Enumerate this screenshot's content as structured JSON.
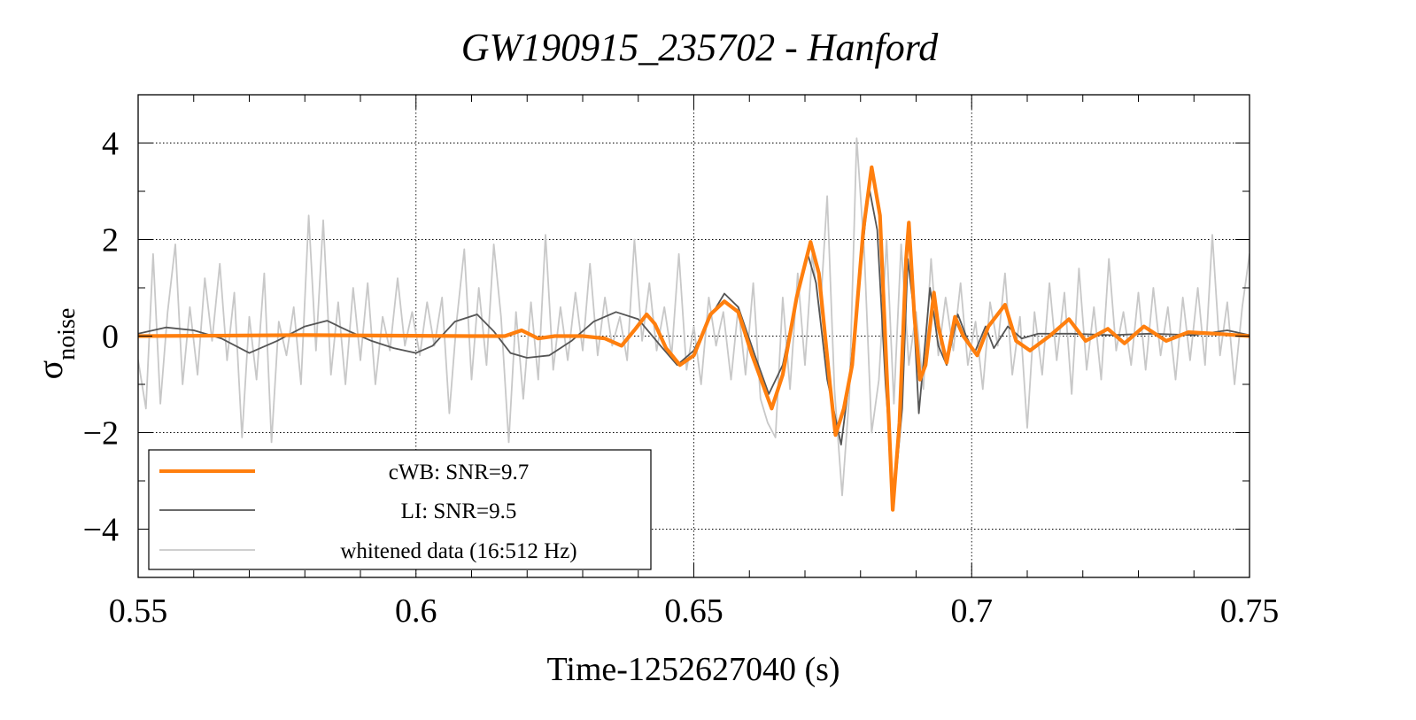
{
  "chart_data": {
    "type": "line",
    "title": "GW190915_235702 - Hanford",
    "xlabel": "Time-1252627040 (s)",
    "ylabel_main": "σ",
    "ylabel_sub": "noise",
    "xlim": [
      0.55,
      0.75
    ],
    "ylim": [
      -5,
      5
    ],
    "xticks": [
      0.55,
      0.6,
      0.65,
      0.7,
      0.75
    ],
    "xtick_labels": [
      "0.55",
      "0.6",
      "0.65",
      "0.7",
      "0.75"
    ],
    "yticks": [
      -4,
      -2,
      0,
      2,
      4
    ],
    "ytick_labels": [
      "−4",
      "−2",
      "0",
      "2",
      "4"
    ],
    "grid": true,
    "legend_position": "bottom-left",
    "series": [
      {
        "name": "whitened data (16:512 Hz)",
        "color": "#c8c8c8",
        "points": [
          [
            0.55,
            -0.5
          ],
          [
            0.5514,
            -1.5
          ],
          [
            0.5527,
            1.7
          ],
          [
            0.554,
            -1.4
          ],
          [
            0.5553,
            0.5
          ],
          [
            0.5567,
            1.9
          ],
          [
            0.558,
            -1.0
          ],
          [
            0.5593,
            0.6
          ],
          [
            0.5607,
            -0.8
          ],
          [
            0.562,
            1.2
          ],
          [
            0.5633,
            -0.1
          ],
          [
            0.5647,
            1.5
          ],
          [
            0.566,
            -0.5
          ],
          [
            0.5673,
            0.9
          ],
          [
            0.5687,
            -2.1
          ],
          [
            0.57,
            0.4
          ],
          [
            0.5713,
            -0.9
          ],
          [
            0.5727,
            1.3
          ],
          [
            0.574,
            -2.2
          ],
          [
            0.5753,
            0.3
          ],
          [
            0.5767,
            -0.4
          ],
          [
            0.578,
            0.6
          ],
          [
            0.5793,
            -1.0
          ],
          [
            0.5807,
            2.5
          ],
          [
            0.582,
            -0.3
          ],
          [
            0.5833,
            2.4
          ],
          [
            0.5847,
            -0.8
          ],
          [
            0.586,
            0.7
          ],
          [
            0.5873,
            -1.0
          ],
          [
            0.5887,
            1.0
          ],
          [
            0.59,
            -0.5
          ],
          [
            0.5913,
            1.1
          ],
          [
            0.5927,
            -1.0
          ],
          [
            0.594,
            0.4
          ],
          [
            0.5953,
            -0.3
          ],
          [
            0.5967,
            1.2
          ],
          [
            0.598,
            -0.2
          ],
          [
            0.5993,
            0.5
          ],
          [
            0.6007,
            -0.4
          ],
          [
            0.602,
            0.7
          ],
          [
            0.6033,
            -0.2
          ],
          [
            0.6047,
            0.8
          ],
          [
            0.606,
            -1.6
          ],
          [
            0.6073,
            0.3
          ],
          [
            0.6087,
            1.8
          ],
          [
            0.61,
            -0.9
          ],
          [
            0.6113,
            1.0
          ],
          [
            0.6127,
            -0.6
          ],
          [
            0.614,
            1.9
          ],
          [
            0.6153,
            0.4
          ],
          [
            0.6167,
            -2.2
          ],
          [
            0.618,
            0.5
          ],
          [
            0.6193,
            -1.3
          ],
          [
            0.6207,
            0.7
          ],
          [
            0.622,
            -0.9
          ],
          [
            0.6233,
            2.1
          ],
          [
            0.6247,
            -0.7
          ],
          [
            0.626,
            0.6
          ],
          [
            0.6273,
            -0.5
          ],
          [
            0.6287,
            0.9
          ],
          [
            0.63,
            -0.3
          ],
          [
            0.6313,
            1.5
          ],
          [
            0.6327,
            -0.4
          ],
          [
            0.634,
            0.8
          ],
          [
            0.6353,
            -0.2
          ],
          [
            0.6367,
            0.4
          ],
          [
            0.638,
            -0.5
          ],
          [
            0.6393,
            2.0
          ],
          [
            0.6407,
            -0.1
          ],
          [
            0.642,
            1.1
          ],
          [
            0.6433,
            -0.3
          ],
          [
            0.6447,
            0.6
          ],
          [
            0.646,
            -0.4
          ],
          [
            0.6473,
            1.7
          ],
          [
            0.6487,
            -0.7
          ],
          [
            0.65,
            0.2
          ],
          [
            0.6513,
            -1.0
          ],
          [
            0.6527,
            0.8
          ],
          [
            0.654,
            -0.2
          ],
          [
            0.6553,
            0.5
          ],
          [
            0.6567,
            -0.9
          ],
          [
            0.658,
            0.6
          ],
          [
            0.6593,
            -0.8
          ],
          [
            0.6607,
            1.1
          ],
          [
            0.662,
            -1.3
          ],
          [
            0.6633,
            -1.8
          ],
          [
            0.6647,
            -2.1
          ],
          [
            0.666,
            0.8
          ],
          [
            0.6673,
            -1.1
          ],
          [
            0.6687,
            1.3
          ],
          [
            0.67,
            -0.6
          ],
          [
            0.6713,
            1.7
          ],
          [
            0.6727,
            0.4
          ],
          [
            0.674,
            2.9
          ],
          [
            0.6753,
            -1.1
          ],
          [
            0.6767,
            -3.3
          ],
          [
            0.678,
            -1.2
          ],
          [
            0.6793,
            4.1
          ],
          [
            0.6807,
            1.7
          ],
          [
            0.682,
            -2.0
          ],
          [
            0.6833,
            -0.9
          ],
          [
            0.6847,
            2.0
          ],
          [
            0.686,
            -1.4
          ],
          [
            0.6873,
            1.9
          ],
          [
            0.6887,
            -0.6
          ],
          [
            0.69,
            0.5
          ],
          [
            0.6913,
            -1.1
          ],
          [
            0.6927,
            1.6
          ],
          [
            0.694,
            -0.4
          ],
          [
            0.6953,
            0.8
          ],
          [
            0.6967,
            -0.3
          ],
          [
            0.698,
            1.1
          ],
          [
            0.6993,
            -0.6
          ],
          [
            0.7007,
            0.3
          ],
          [
            0.702,
            -1.1
          ],
          [
            0.7033,
            0.7
          ],
          [
            0.7047,
            -0.2
          ],
          [
            0.706,
            1.3
          ],
          [
            0.7073,
            -0.8
          ],
          [
            0.7087,
            0.4
          ],
          [
            0.71,
            -1.9
          ],
          [
            0.7113,
            0.5
          ],
          [
            0.7127,
            -0.8
          ],
          [
            0.714,
            1.1
          ],
          [
            0.7153,
            -0.5
          ],
          [
            0.7167,
            0.9
          ],
          [
            0.718,
            -1.2
          ],
          [
            0.7193,
            1.4
          ],
          [
            0.7207,
            -0.7
          ],
          [
            0.722,
            0.6
          ],
          [
            0.7233,
            -0.9
          ],
          [
            0.7247,
            1.6
          ],
          [
            0.726,
            -0.3
          ],
          [
            0.7273,
            0.5
          ],
          [
            0.7287,
            -0.6
          ],
          [
            0.73,
            0.9
          ],
          [
            0.7313,
            -0.7
          ],
          [
            0.7327,
            1.0
          ],
          [
            0.734,
            -0.4
          ],
          [
            0.7353,
            0.6
          ],
          [
            0.7367,
            -0.9
          ],
          [
            0.738,
            0.8
          ],
          [
            0.7393,
            -0.5
          ],
          [
            0.7407,
            1.0
          ],
          [
            0.742,
            -0.6
          ],
          [
            0.7433,
            2.1
          ],
          [
            0.7447,
            -0.4
          ],
          [
            0.746,
            0.7
          ],
          [
            0.7473,
            -1.0
          ],
          [
            0.7487,
            0.6
          ],
          [
            0.75,
            1.7
          ]
        ]
      },
      {
        "name": "LI: SNR=9.5",
        "color": "#555555",
        "points": [
          [
            0.55,
            0.05
          ],
          [
            0.555,
            0.18
          ],
          [
            0.56,
            0.12
          ],
          [
            0.565,
            -0.05
          ],
          [
            0.57,
            -0.35
          ],
          [
            0.575,
            -0.1
          ],
          [
            0.58,
            0.2
          ],
          [
            0.584,
            0.32
          ],
          [
            0.588,
            0.1
          ],
          [
            0.592,
            -0.1
          ],
          [
            0.596,
            -0.25
          ],
          [
            0.6,
            -0.35
          ],
          [
            0.603,
            -0.2
          ],
          [
            0.607,
            0.3
          ],
          [
            0.611,
            0.45
          ],
          [
            0.614,
            0.1
          ],
          [
            0.617,
            -0.35
          ],
          [
            0.62,
            -0.45
          ],
          [
            0.624,
            -0.4
          ],
          [
            0.628,
            -0.1
          ],
          [
            0.632,
            0.3
          ],
          [
            0.636,
            0.5
          ],
          [
            0.64,
            0.35
          ],
          [
            0.644,
            -0.2
          ],
          [
            0.647,
            -0.6
          ],
          [
            0.65,
            -0.3
          ],
          [
            0.653,
            0.4
          ],
          [
            0.6555,
            0.88
          ],
          [
            0.658,
            0.6
          ],
          [
            0.661,
            -0.4
          ],
          [
            0.6635,
            -1.2
          ],
          [
            0.666,
            -0.6
          ],
          [
            0.6685,
            0.8
          ],
          [
            0.6705,
            1.7
          ],
          [
            0.672,
            1.1
          ],
          [
            0.674,
            -0.9
          ],
          [
            0.6765,
            -2.25
          ],
          [
            0.678,
            -0.9
          ],
          [
            0.6795,
            0.8
          ],
          [
            0.6815,
            3.1
          ],
          [
            0.683,
            2.2
          ],
          [
            0.6845,
            -1.0
          ],
          [
            0.686,
            -3.4
          ],
          [
            0.6875,
            -1.5
          ],
          [
            0.6885,
            1.6
          ],
          [
            0.6895,
            0.6
          ],
          [
            0.6905,
            -1.6
          ],
          [
            0.6925,
            1.0
          ],
          [
            0.694,
            -0.2
          ],
          [
            0.6955,
            -0.6
          ],
          [
            0.6975,
            0.45
          ],
          [
            0.699,
            0.0
          ],
          [
            0.7005,
            -0.35
          ],
          [
            0.7025,
            0.2
          ],
          [
            0.704,
            -0.25
          ],
          [
            0.7065,
            0.2
          ],
          [
            0.709,
            -0.05
          ],
          [
            0.712,
            0.05
          ],
          [
            0.718,
            0.05
          ],
          [
            0.725,
            0.02
          ],
          [
            0.732,
            0.05
          ],
          [
            0.74,
            0.02
          ],
          [
            0.746,
            0.12
          ],
          [
            0.75,
            0.02
          ]
        ]
      },
      {
        "name": "cWB: SNR=9.7",
        "color": "#ff7f0e",
        "points": [
          [
            0.55,
            0.0
          ],
          [
            0.58,
            0.02
          ],
          [
            0.61,
            0.0
          ],
          [
            0.616,
            0.0
          ],
          [
            0.619,
            0.12
          ],
          [
            0.622,
            -0.05
          ],
          [
            0.625,
            0.0
          ],
          [
            0.63,
            0.0
          ],
          [
            0.634,
            -0.05
          ],
          [
            0.637,
            -0.2
          ],
          [
            0.6395,
            0.15
          ],
          [
            0.6415,
            0.45
          ],
          [
            0.643,
            0.25
          ],
          [
            0.645,
            -0.25
          ],
          [
            0.6475,
            -0.6
          ],
          [
            0.65,
            -0.4
          ],
          [
            0.653,
            0.45
          ],
          [
            0.6555,
            0.72
          ],
          [
            0.658,
            0.5
          ],
          [
            0.6605,
            -0.4
          ],
          [
            0.664,
            -1.5
          ],
          [
            0.666,
            -0.8
          ],
          [
            0.6685,
            0.8
          ],
          [
            0.671,
            1.95
          ],
          [
            0.6725,
            1.3
          ],
          [
            0.6745,
            -1.0
          ],
          [
            0.6755,
            -2.05
          ],
          [
            0.677,
            -1.5
          ],
          [
            0.6785,
            -0.6
          ],
          [
            0.6805,
            2.2
          ],
          [
            0.682,
            3.5
          ],
          [
            0.6835,
            2.5
          ],
          [
            0.685,
            -1.5
          ],
          [
            0.6858,
            -3.6
          ],
          [
            0.687,
            -1.8
          ],
          [
            0.6882,
            1.6
          ],
          [
            0.6887,
            2.35
          ],
          [
            0.6897,
            0.4
          ],
          [
            0.6907,
            -0.9
          ],
          [
            0.6917,
            -0.6
          ],
          [
            0.6932,
            0.9
          ],
          [
            0.694,
            0.2
          ],
          [
            0.6955,
            -0.55
          ],
          [
            0.697,
            0.4
          ],
          [
            0.6985,
            0.0
          ],
          [
            0.701,
            -0.4
          ],
          [
            0.703,
            0.2
          ],
          [
            0.706,
            0.65
          ],
          [
            0.708,
            -0.1
          ],
          [
            0.7105,
            -0.3
          ],
          [
            0.714,
            0.0
          ],
          [
            0.7175,
            0.35
          ],
          [
            0.7205,
            -0.1
          ],
          [
            0.7245,
            0.15
          ],
          [
            0.7275,
            -0.15
          ],
          [
            0.731,
            0.2
          ],
          [
            0.735,
            -0.1
          ],
          [
            0.739,
            0.08
          ],
          [
            0.744,
            0.05
          ],
          [
            0.75,
            0.0
          ]
        ]
      }
    ],
    "legend": [
      {
        "label": "cWB: SNR=9.7",
        "color": "#ff7f0e"
      },
      {
        "label": "LI: SNR=9.5",
        "color": "#555555"
      },
      {
        "label": "whitened data (16:512 Hz)",
        "color": "#c8c8c8"
      }
    ]
  }
}
